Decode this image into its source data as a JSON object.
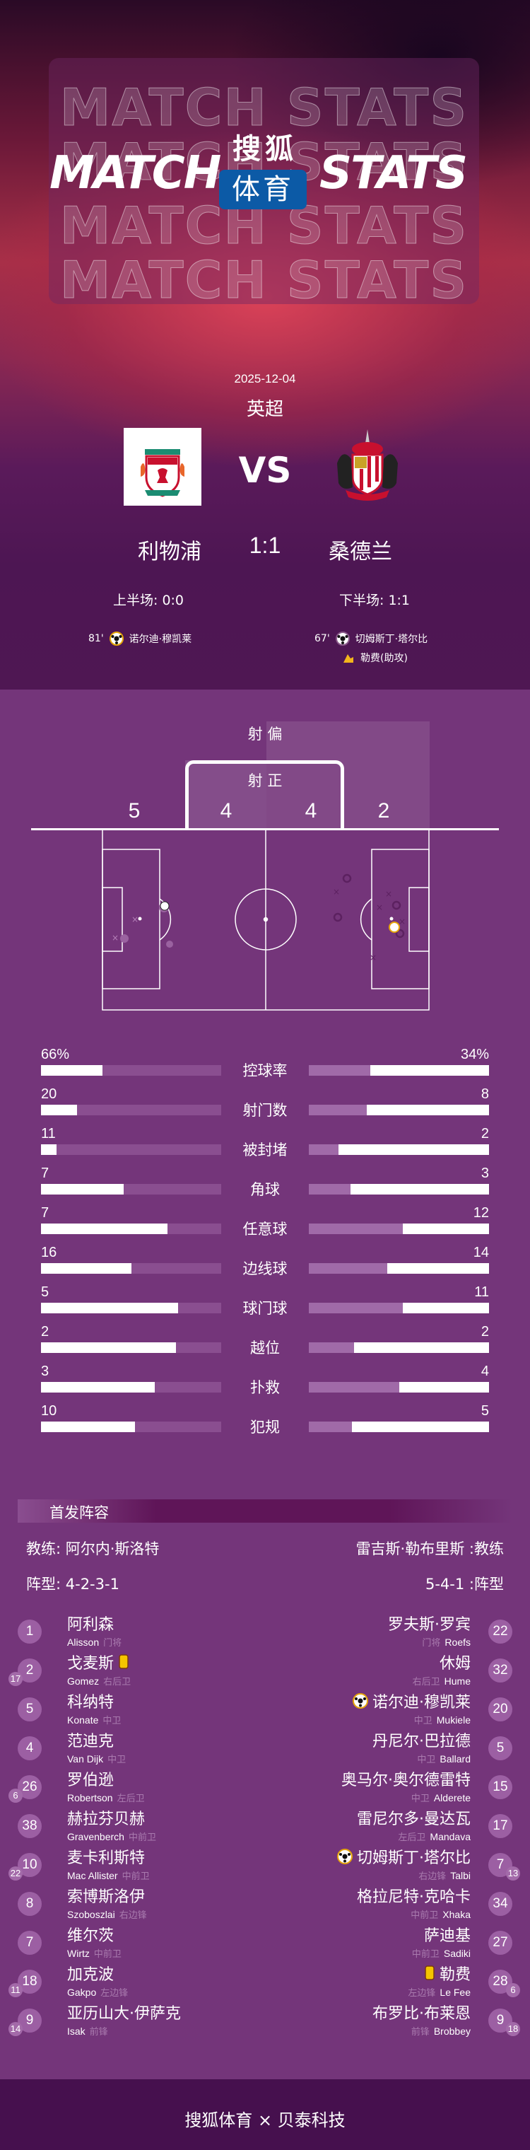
{
  "header": {
    "title_left": "MATCH",
    "title_right": "STATS",
    "ghost_text": "MATCH STATS",
    "brand_top": "搜狐",
    "brand_bottom": "体育"
  },
  "match": {
    "date": "2025-12-04",
    "league": "英超",
    "vs": "VS",
    "home": {
      "name": "利物浦",
      "logo": "LIVERPOOL FOOTBALL CLUB",
      "half": "上半场: 0:0"
    },
    "away": {
      "name": "桑德兰",
      "logo": "SUNDERLAND A.F.C.",
      "half": "下半场: 1:1"
    },
    "score": "1:1",
    "home_goals": [
      {
        "minute": "81'",
        "player": "诺尔迪·穆凯莱",
        "icon": "soccer-ball-icon"
      }
    ],
    "away_goals": [
      {
        "minute": "67'",
        "player": "切姆斯丁·塔尔比",
        "icon": "soccer-ball-icon"
      }
    ],
    "away_assist": {
      "text": "勒费(助攻)",
      "icon": "boot-icon"
    }
  },
  "shots": {
    "off_label": "射 偏",
    "on_label": "射 正",
    "home_off": "5",
    "home_on": "4",
    "away_on": "4",
    "away_off": "2"
  },
  "stats": [
    {
      "label": "控球率",
      "home": "66%",
      "away": "34%",
      "home_fill": 0.34,
      "away_fill": 0.66
    },
    {
      "label": "射门数",
      "home": "20",
      "away": "8",
      "home_fill": 0.2,
      "away_fill": 0.68
    },
    {
      "label": "被封堵",
      "home": "11",
      "away": "2",
      "home_fill": 0.085,
      "away_fill": 0.835
    },
    {
      "label": "角球",
      "home": "7",
      "away": "3",
      "home_fill": 0.46,
      "away_fill": 0.77
    },
    {
      "label": "任意球",
      "home": "7",
      "away": "12",
      "home_fill": 0.7,
      "away_fill": 0.48
    },
    {
      "label": "边线球",
      "home": "16",
      "away": "14",
      "home_fill": 0.5,
      "away_fill": 0.565
    },
    {
      "label": "球门球",
      "home": "5",
      "away": "11",
      "home_fill": 0.76,
      "away_fill": 0.48
    },
    {
      "label": "越位",
      "home": "2",
      "away": "2",
      "home_fill": 0.75,
      "away_fill": 0.75
    },
    {
      "label": "扑救",
      "home": "3",
      "away": "4",
      "home_fill": 0.63,
      "away_fill": 0.5
    },
    {
      "label": "犯规",
      "home": "10",
      "away": "5",
      "home_fill": 0.52,
      "away_fill": 0.76
    }
  ],
  "lineup": {
    "title": "首发阵容",
    "home_coach": "教练: 阿尔内·斯洛特",
    "away_coach": "雷吉斯·勒布里斯 :教练",
    "home_formation": "阵型: 4-2-3-1",
    "away_formation": "5-4-1 :阵型",
    "home": [
      {
        "no": "1",
        "cn": "阿利森",
        "en": "Alisson",
        "pos": "门将"
      },
      {
        "no": "2",
        "cn": "戈麦斯",
        "en": "Gomez",
        "pos": "右后卫",
        "card": "yellow",
        "sub": "17"
      },
      {
        "no": "5",
        "cn": "科纳特",
        "en": "Konate",
        "pos": "中卫"
      },
      {
        "no": "4",
        "cn": "范迪克",
        "en": "Van Dijk",
        "pos": "中卫"
      },
      {
        "no": "26",
        "cn": "罗伯逊",
        "en": "Robertson",
        "pos": "左后卫",
        "sub": "6"
      },
      {
        "no": "38",
        "cn": "赫拉芬贝赫",
        "en": "Gravenberch",
        "pos": "中前卫"
      },
      {
        "no": "10",
        "cn": "麦卡利斯特",
        "en": "Mac Allister",
        "pos": "中前卫",
        "sub": "22"
      },
      {
        "no": "8",
        "cn": "索博斯洛伊",
        "en": "Szoboszlai",
        "pos": "右边锋"
      },
      {
        "no": "7",
        "cn": "维尔茨",
        "en": "Wirtz",
        "pos": "中前卫"
      },
      {
        "no": "18",
        "cn": "加克波",
        "en": "Gakpo",
        "pos": "左边锋",
        "sub": "11"
      },
      {
        "no": "9",
        "cn": "亚历山大·伊萨克",
        "en": "Isak",
        "pos": "前锋",
        "sub": "14"
      }
    ],
    "away": [
      {
        "no": "22",
        "cn": "罗夫斯·罗宾",
        "en": "Roefs",
        "pos": "门将"
      },
      {
        "no": "32",
        "cn": "休姆",
        "en": "Hume",
        "pos": "右后卫"
      },
      {
        "no": "20",
        "cn": "诺尔迪·穆凯莱",
        "en": "Mukiele",
        "pos": "中卫",
        "goal": "own"
      },
      {
        "no": "5",
        "cn": "丹尼尔·巴拉德",
        "en": "Ballard",
        "pos": "中卫"
      },
      {
        "no": "15",
        "cn": "奥马尔·奥尔德雷特",
        "en": "Alderete",
        "pos": "中卫"
      },
      {
        "no": "17",
        "cn": "雷尼尔多·曼达瓦",
        "en": "Mandava",
        "pos": "左后卫"
      },
      {
        "no": "7",
        "cn": "切姆斯丁·塔尔比",
        "en": "Talbi",
        "pos": "右边锋",
        "goal": "goal",
        "sub": "13"
      },
      {
        "no": "34",
        "cn": "格拉尼特·克哈卡",
        "en": "Xhaka",
        "pos": "中前卫"
      },
      {
        "no": "27",
        "cn": "萨迪基",
        "en": "Sadiki",
        "pos": "中前卫"
      },
      {
        "no": "28",
        "cn": "勒费",
        "en": "Le Fee",
        "pos": "左边锋",
        "card": "yellow",
        "sub": "6"
      },
      {
        "no": "9",
        "cn": "布罗比·布莱恩",
        "en": "Brobbey",
        "pos": "前锋",
        "sub": "18"
      }
    ]
  },
  "footer": {
    "text": "搜狐体育 × 贝泰科技"
  },
  "colors": {
    "bg": "#74357a",
    "hero_dark": "#4f1753",
    "brand_blue": "#0c5aa6",
    "footer": "#46104e",
    "yellow_card": "#f5c400"
  }
}
